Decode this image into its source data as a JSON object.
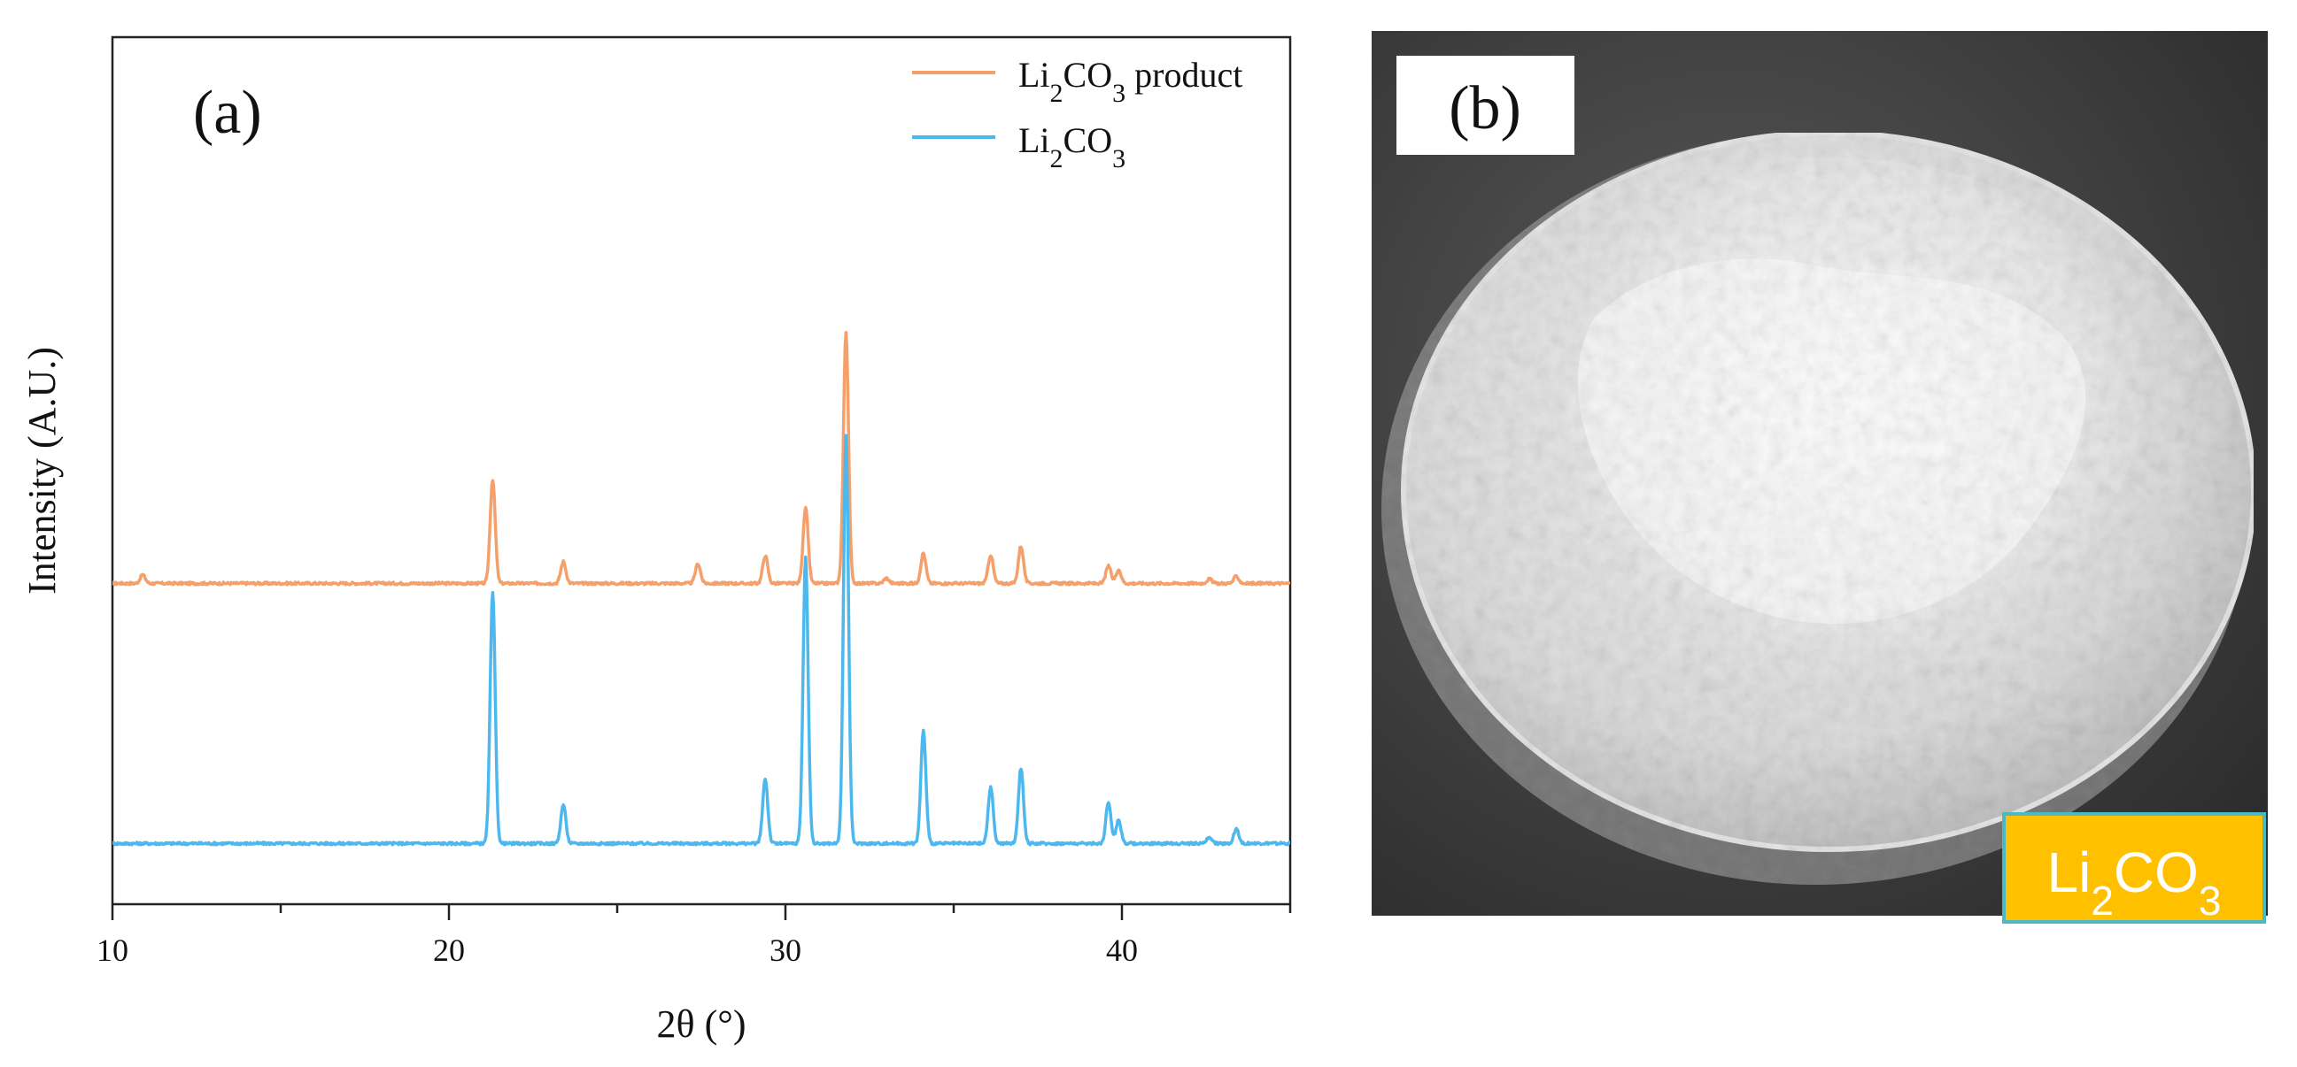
{
  "panel_a": {
    "label": "(a)",
    "chart_data": {
      "type": "line",
      "xlabel": "2θ  (°)",
      "ylabel": "Intensity (A.U.)",
      "xlim": [
        10,
        45
      ],
      "x_ticks": [
        10,
        20,
        30,
        40
      ],
      "y_ticks_shown": false,
      "grid": false,
      "legend": "top-right",
      "series": [
        {
          "name_parts": [
            "Li",
            "2",
            "CO",
            "3",
            " product"
          ],
          "color": "#F5A06A",
          "baseline": 0.37,
          "peaks": [
            {
              "x": 10.9,
              "h": 0.01
            },
            {
              "x": 21.3,
              "h": 0.12
            },
            {
              "x": 23.4,
              "h": 0.025
            },
            {
              "x": 27.4,
              "h": 0.023
            },
            {
              "x": 29.4,
              "h": 0.032
            },
            {
              "x": 30.6,
              "h": 0.087
            },
            {
              "x": 31.8,
              "h": 0.29
            },
            {
              "x": 33.0,
              "h": 0.006
            },
            {
              "x": 34.1,
              "h": 0.035
            },
            {
              "x": 36.1,
              "h": 0.033
            },
            {
              "x": 37.0,
              "h": 0.043
            },
            {
              "x": 39.6,
              "h": 0.02
            },
            {
              "x": 39.9,
              "h": 0.016
            },
            {
              "x": 42.6,
              "h": 0.005
            },
            {
              "x": 43.4,
              "h": 0.008
            }
          ]
        },
        {
          "name_parts": [
            "Li",
            "2",
            "CO",
            "3"
          ],
          "color": "#4DB8EE",
          "baseline": 0.07,
          "peaks": [
            {
              "x": 21.3,
              "h": 0.29
            },
            {
              "x": 23.4,
              "h": 0.045
            },
            {
              "x": 29.4,
              "h": 0.075
            },
            {
              "x": 30.6,
              "h": 0.33
            },
            {
              "x": 31.8,
              "h": 0.47
            },
            {
              "x": 34.1,
              "h": 0.13
            },
            {
              "x": 36.1,
              "h": 0.065
            },
            {
              "x": 37.0,
              "h": 0.087
            },
            {
              "x": 39.6,
              "h": 0.048
            },
            {
              "x": 39.9,
              "h": 0.027
            },
            {
              "x": 42.6,
              "h": 0.008
            },
            {
              "x": 43.4,
              "h": 0.017
            }
          ]
        }
      ]
    }
  },
  "panel_b": {
    "label": "(b)",
    "badge_parts": [
      "Li",
      "2",
      "CO",
      "3"
    ],
    "badge_color": "#FFC000",
    "badge_border_color": "#4BB8C4"
  }
}
